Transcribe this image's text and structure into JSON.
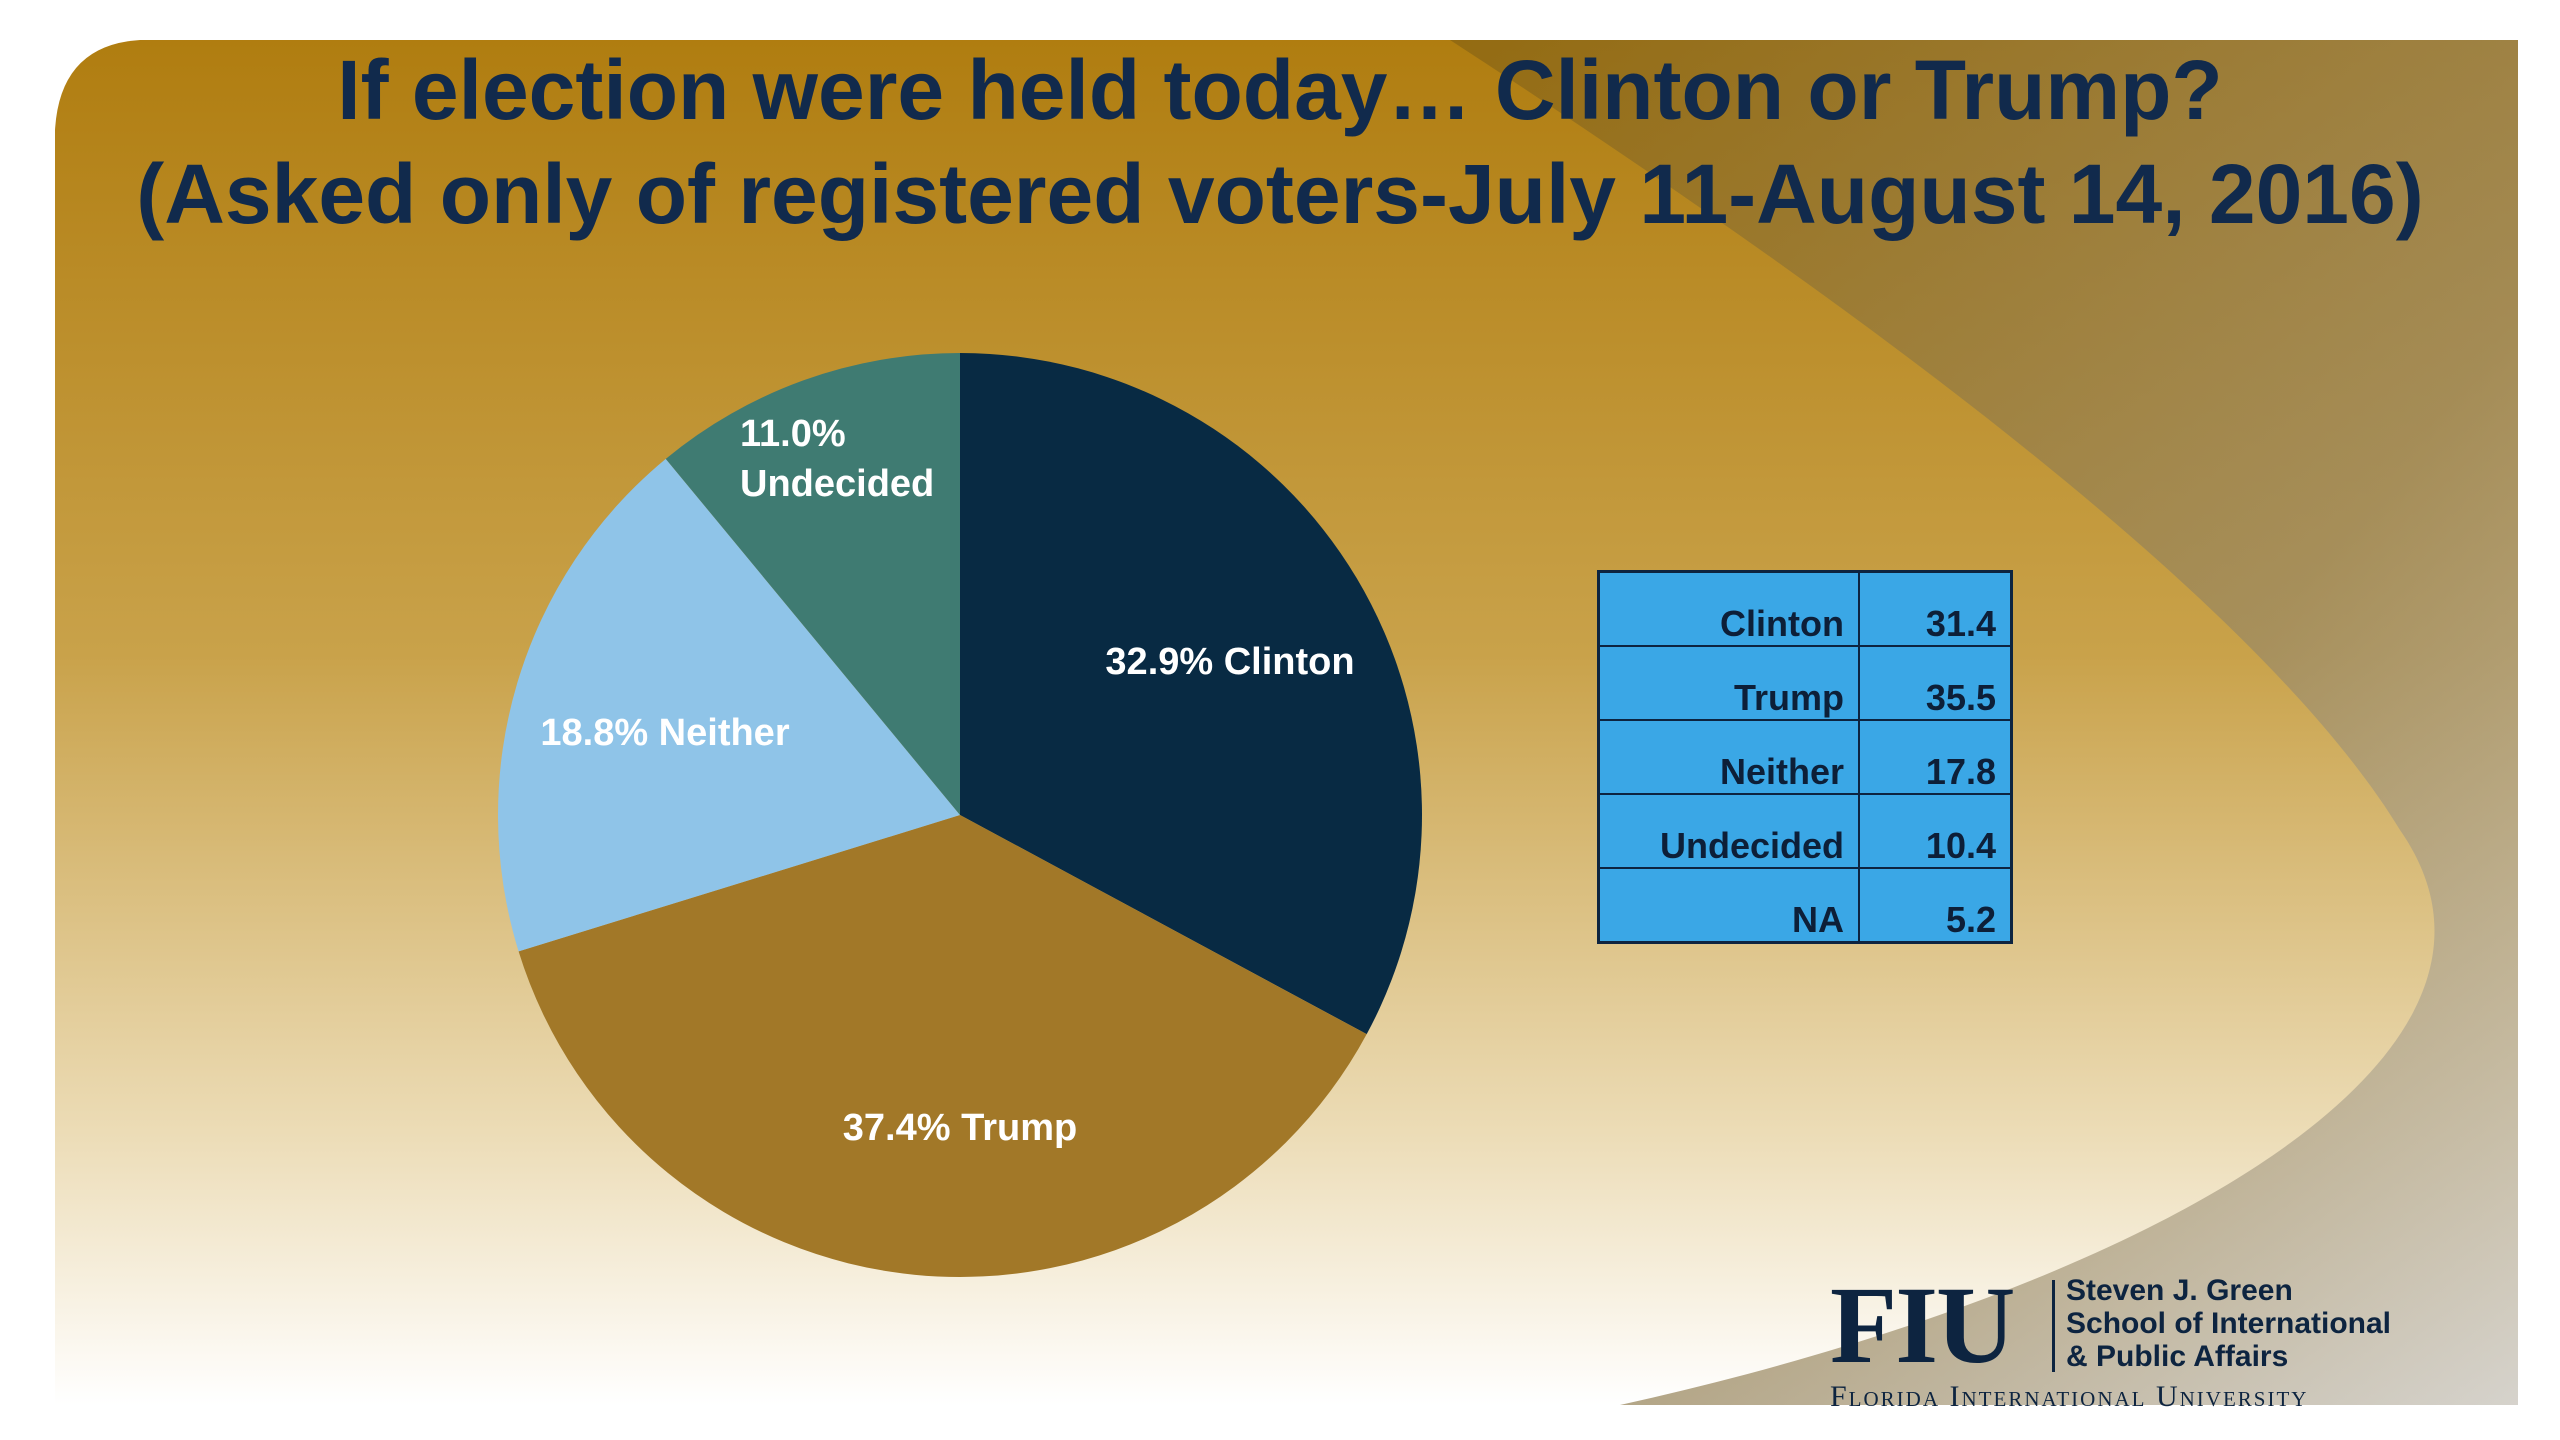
{
  "slide": {
    "title_line1": "If election were held today… Clinton or Trump?",
    "title_line2": "(Asked only of registered voters-July 11-August 14, 2016)",
    "colors": {
      "background_gold": "#b07d10",
      "background_light": "#f4ead2",
      "title_text": "#112a4c",
      "table_fill": "#3aa7e6"
    }
  },
  "chart_data": {
    "type": "pie",
    "slices": [
      {
        "name": "Clinton",
        "value": 32.9,
        "label": "32.9%  Clinton",
        "color": "#082a43"
      },
      {
        "name": "Trump",
        "value": 37.4,
        "label": "37.4%  Trump",
        "color": "#a27828"
      },
      {
        "name": "Neither",
        "value": 18.8,
        "label": "18.8%  Neither",
        "color": "#8fc4e8"
      },
      {
        "name": "Undecided",
        "value": 11.0,
        "label_pct": "11.0%",
        "label_name": "Undecided",
        "color": "#3f7b72"
      }
    ]
  },
  "table": {
    "rows": [
      {
        "label": "Clinton",
        "value": "31.4"
      },
      {
        "label": "Trump",
        "value": "35.5"
      },
      {
        "label": "Neither",
        "value": "17.8"
      },
      {
        "label": "Undecided",
        "value": "10.4"
      },
      {
        "label": "NA",
        "value": "5.2"
      }
    ]
  },
  "logo": {
    "wordmark": "FIU",
    "school_line1": "Steven J. Green",
    "school_line2": "School of International",
    "school_line3": "& Public Affairs",
    "university": "Florida International University"
  }
}
